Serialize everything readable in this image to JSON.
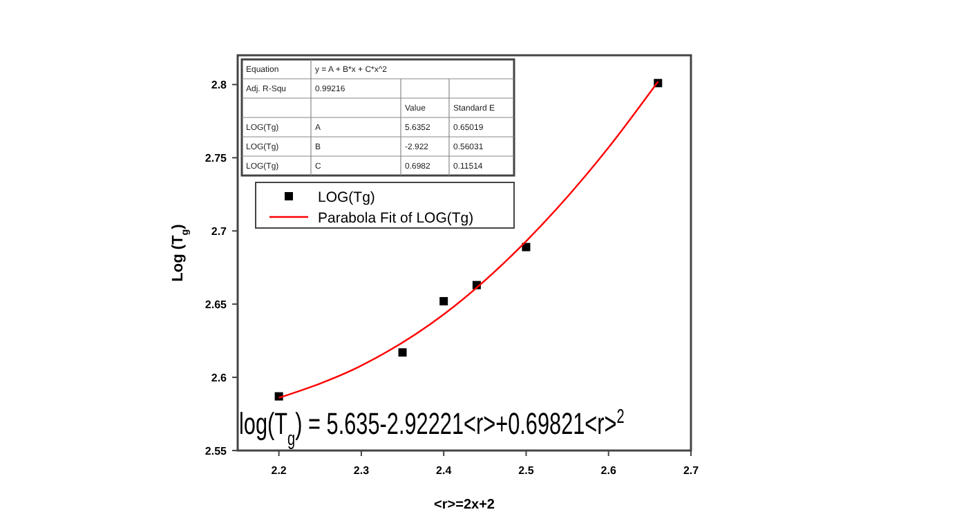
{
  "chart_data": {
    "type": "scatter",
    "xlabel": "<r>=2x+2",
    "ylabel": "Log (T$_{g}$)",
    "xlim": [
      2.15,
      2.7
    ],
    "xticks": [
      2.2,
      2.3,
      2.4,
      2.5,
      2.6,
      2.7
    ],
    "ylim": [
      2.55,
      2.82
    ],
    "yticks": [
      2.55,
      2.6,
      2.65,
      2.7,
      2.75,
      2.8
    ],
    "legend": "top left",
    "grid": false,
    "series": [
      {
        "name": "LOG(Tg)",
        "marker": "square",
        "color": "#000000",
        "x": [
          2.2,
          2.35,
          2.4,
          2.44,
          2.5,
          2.66
        ],
        "values": [
          2.587,
          2.617,
          2.652,
          2.663,
          2.689,
          2.801
        ]
      },
      {
        "name": "Parabola Fit of LOG(Tg)",
        "type": "line",
        "marker": "none",
        "line_style": "solid",
        "color": "#ff0000",
        "x": [
          2.2,
          2.3,
          2.4,
          2.5,
          2.6,
          2.66
        ],
        "values": [
          2.586,
          2.608,
          2.643,
          2.693,
          2.757,
          2.802
        ]
      }
    ],
    "annotations": [
      "Equation",
      "y = A + B*x + C*x^2",
      "Adj. R-Squ",
      "0.99216",
      "Value",
      "Standard E",
      "LOG(Tg)",
      "A",
      "5.6352",
      "0.65019",
      "LOG(Tg)",
      "B",
      "-2.922",
      "0.56031",
      "LOG(Tg)",
      "C",
      "0.6982",
      "0.11514",
      "log(T$_{g}$) = 5.635-2.92221<r>+0.69821<r>$^{2}$"
    ]
  }
}
